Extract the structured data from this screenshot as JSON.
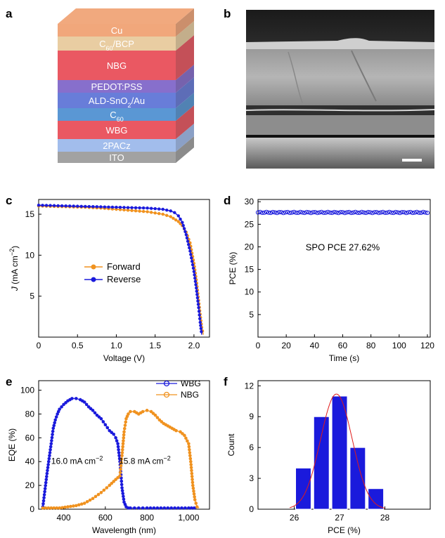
{
  "panels": {
    "a": "a",
    "b": "b",
    "c": "c",
    "d": "d",
    "e": "e",
    "f": "f"
  },
  "colors": {
    "blue": "#1a1adc",
    "orange": "#f0921f",
    "fit": "#e01b1b"
  },
  "layers": [
    {
      "label": "Cu",
      "color": "#f0a070"
    },
    {
      "label": "C60/BCP",
      "label_main": "C",
      "label_sub": "60",
      "label_rest": "/BCP",
      "color": "#e7c99a"
    },
    {
      "label": "NBG",
      "color": "#e84a55"
    },
    {
      "label": "PEDOT:PSS",
      "color": "#7d63c8"
    },
    {
      "label": "ALD-SnO2/Au",
      "label_main": "ALD-SnO",
      "label_sub": "2",
      "label_rest": "/Au",
      "color": "#5b72d6"
    },
    {
      "label": "C60",
      "label_main": "C",
      "label_sub": "60",
      "label_rest": "",
      "color": "#4c8ed0"
    },
    {
      "label": "WBG",
      "color": "#e84a55"
    },
    {
      "label": "2PACz",
      "color": "#9ab7ea"
    },
    {
      "label": "ITO",
      "color": "#9a9a9a"
    }
  ],
  "sem": {
    "scale_bar_icon": "scale-bar-icon"
  },
  "chart_data": [
    {
      "id": "c",
      "type": "line",
      "xlabel": "Voltage (V)",
      "ylabel_italic": "J",
      "ylabel_rest": " (mA cm",
      "ylabel_sup": "−2",
      "ylabel_end": ")",
      "xlim": [
        0,
        2.2
      ],
      "ylim": [
        0,
        16.8
      ],
      "xticks": [
        "0",
        "0.5",
        "1.0",
        "1.5",
        "2.0"
      ],
      "xtick_values": [
        0,
        0.5,
        1.0,
        1.5,
        2.0
      ],
      "yticks": [
        "5",
        "10",
        "15"
      ],
      "ytick_values": [
        5,
        10,
        15
      ],
      "series": [
        {
          "name": "Forward",
          "color": "#f0921f",
          "x": [
            0,
            0.2,
            0.4,
            0.6,
            0.8,
            1.0,
            1.2,
            1.4,
            1.6,
            1.7,
            1.8,
            1.85,
            1.9,
            1.95,
            2.0,
            2.03,
            2.06,
            2.08,
            2.1,
            2.12
          ],
          "y": [
            16.0,
            15.95,
            15.9,
            15.85,
            15.75,
            15.6,
            15.45,
            15.3,
            15.0,
            14.7,
            14.1,
            13.6,
            12.8,
            11.5,
            9.0,
            7.0,
            4.5,
            2.8,
            1.2,
            0.3
          ]
        },
        {
          "name": "Reverse",
          "color": "#1a1adc",
          "x": [
            0,
            0.2,
            0.4,
            0.6,
            0.8,
            1.0,
            1.2,
            1.4,
            1.6,
            1.7,
            1.75,
            1.8,
            1.85,
            1.9,
            1.95,
            2.0,
            2.03,
            2.06,
            2.08,
            2.1
          ],
          "y": [
            16.1,
            16.05,
            16.0,
            15.95,
            15.9,
            15.85,
            15.8,
            15.75,
            15.6,
            15.4,
            15.2,
            14.8,
            14.0,
            12.5,
            10.5,
            8.0,
            6.0,
            3.6,
            1.8,
            0.3
          ]
        }
      ]
    },
    {
      "id": "d",
      "type": "scatter",
      "xlabel": "Time (s)",
      "ylabel": "PCE (%)",
      "xlim": [
        0,
        122
      ],
      "ylim": [
        0,
        30.5
      ],
      "xticks": [
        "0",
        "20",
        "40",
        "60",
        "80",
        "100",
        "120"
      ],
      "xtick_values": [
        0,
        20,
        40,
        60,
        80,
        100,
        120
      ],
      "yticks": [
        "5",
        "10",
        "15",
        "20",
        "25",
        "30"
      ],
      "ytick_values": [
        5,
        10,
        15,
        20,
        25,
        30
      ],
      "annotation": "SPO PCE 27.62%",
      "series": [
        {
          "name": "",
          "color": "#1a1adc",
          "constant": 27.62,
          "x_start": 0,
          "x_end": 120,
          "step": 1.5
        }
      ]
    },
    {
      "id": "e",
      "type": "line",
      "xlabel": "Wavelength (nm)",
      "ylabel": "EQE (%)",
      "xlim": [
        280,
        1100
      ],
      "ylim": [
        0,
        108
      ],
      "xticks": [
        "400",
        "600",
        "800",
        "1,000"
      ],
      "xtick_values": [
        400,
        600,
        800,
        1000
      ],
      "yticks": [
        "0",
        "20",
        "40",
        "60",
        "80",
        "100"
      ],
      "ytick_values": [
        0,
        20,
        40,
        60,
        80,
        100
      ],
      "annotations": [
        {
          "text_main": "16.0 mA cm",
          "text_sup": "−2",
          "x": 340,
          "y": 38
        },
        {
          "text_main": "15.8 mA cm",
          "text_sup": "−2",
          "x": 665,
          "y": 38
        }
      ],
      "series": [
        {
          "name": "WBG",
          "color": "#1a1adc",
          "x": [
            300,
            320,
            340,
            350,
            360,
            370,
            380,
            400,
            420,
            440,
            460,
            480,
            500,
            520,
            540,
            560,
            580,
            600,
            620,
            640,
            650,
            660,
            670,
            680,
            690,
            700,
            710,
            720,
            740,
            760,
            780,
            800,
            850,
            900,
            950,
            1000,
            1040
          ],
          "y": [
            2,
            30,
            55,
            68,
            75,
            80,
            84,
            88,
            91,
            93,
            93,
            92,
            90,
            86,
            83,
            79,
            76,
            71,
            66,
            63,
            60,
            55,
            40,
            18,
            6,
            2,
            1,
            1,
            1,
            1,
            1,
            1,
            1,
            1,
            1,
            1,
            1
          ]
        },
        {
          "name": "NBG",
          "color": "#f0921f",
          "x": [
            300,
            340,
            380,
            420,
            460,
            500,
            540,
            580,
            620,
            650,
            670,
            680,
            690,
            700,
            710,
            720,
            740,
            760,
            780,
            800,
            820,
            840,
            860,
            880,
            900,
            920,
            940,
            960,
            980,
            1000,
            1010,
            1020,
            1030,
            1040,
            1050
          ],
          "y": [
            1,
            1,
            1,
            2,
            3,
            5,
            9,
            14,
            20,
            25,
            28,
            45,
            65,
            76,
            80,
            82,
            82,
            80,
            82,
            83,
            82,
            79,
            75,
            72,
            70,
            68,
            66,
            65,
            62,
            55,
            40,
            20,
            8,
            2,
            1
          ]
        }
      ]
    },
    {
      "id": "f",
      "type": "bar",
      "xlabel": "PCE (%)",
      "ylabel": "Count",
      "xlim": [
        25.2,
        29.0
      ],
      "ylim": [
        0,
        12.5
      ],
      "xticks": [
        "26",
        "27",
        "28"
      ],
      "xtick_values": [
        26,
        27,
        28
      ],
      "yticks": [
        "0",
        "3",
        "6",
        "9",
        "12"
      ],
      "ytick_values": [
        0,
        3,
        6,
        9,
        12
      ],
      "bins": [
        26.2,
        26.6,
        27.0,
        27.4,
        27.8
      ],
      "bin_width": 0.34,
      "values": [
        4,
        9,
        11,
        6,
        2
      ],
      "fit": {
        "mean": 26.93,
        "sd": 0.35,
        "peak": 11.2
      }
    }
  ]
}
